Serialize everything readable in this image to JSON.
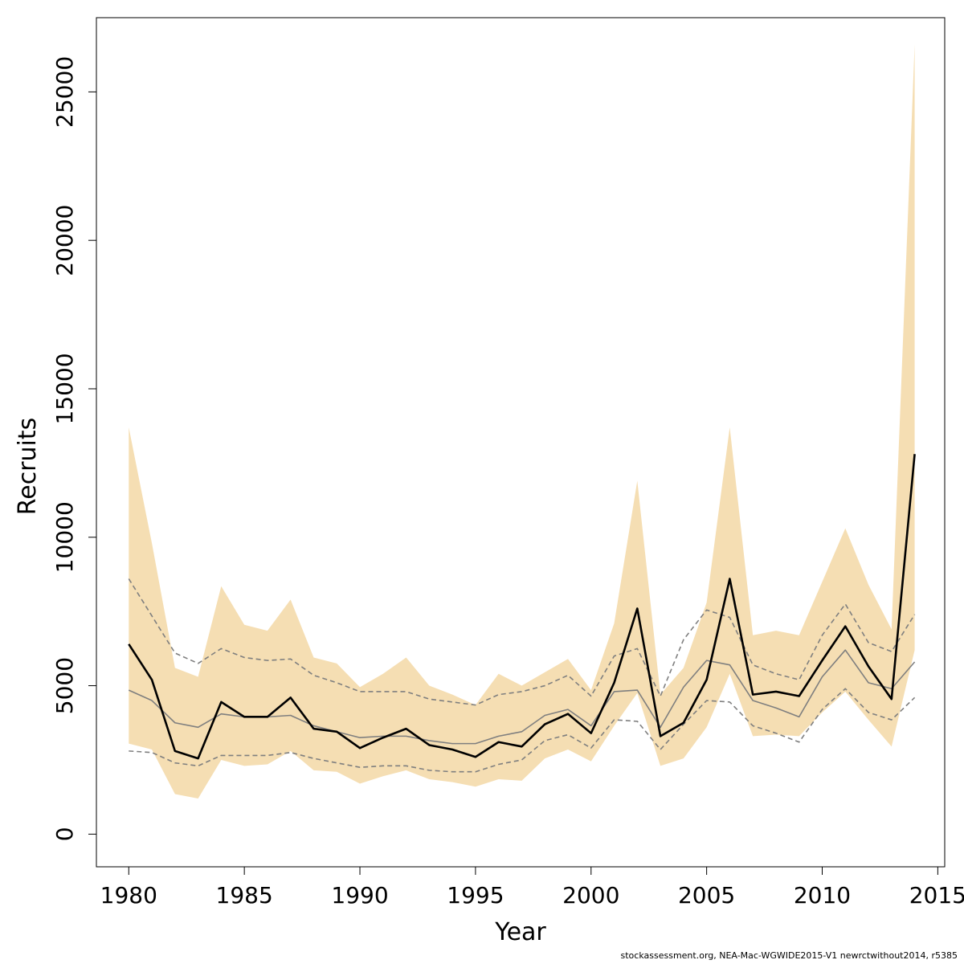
{
  "chart_data": {
    "type": "line",
    "xlabel": "Year",
    "ylabel": "Recruits",
    "xlim": [
      1978.6,
      2015.3
    ],
    "ylim": [
      -1100,
      27500
    ],
    "x_ticks": [
      1980,
      1985,
      1990,
      1995,
      2000,
      2005,
      2010,
      2015
    ],
    "y_ticks": [
      0,
      5000,
      10000,
      15000,
      20000,
      25000
    ],
    "grid": false,
    "legend": "none",
    "x": [
      1980,
      1981,
      1982,
      1983,
      1984,
      1985,
      1986,
      1987,
      1988,
      1989,
      1990,
      1991,
      1992,
      1993,
      1994,
      1995,
      1996,
      1997,
      1998,
      1999,
      2000,
      2001,
      2002,
      2003,
      2004,
      2005,
      2006,
      2007,
      2008,
      2009,
      2010,
      2011,
      2012,
      2013,
      2014
    ],
    "band": {
      "color": "#f5deb3",
      "upper": [
        13700,
        9800,
        5600,
        5300,
        8350,
        7050,
        6850,
        7900,
        5950,
        5750,
        4950,
        5400,
        5950,
        5000,
        4700,
        4350,
        5400,
        5000,
        5450,
        5900,
        4850,
        7100,
        11900,
        4700,
        5600,
        7800,
        13700,
        6700,
        6850,
        6700,
        8500,
        10300,
        8400,
        6900,
        26600
      ],
      "lower": [
        3050,
        2850,
        1350,
        1200,
        2500,
        2300,
        2350,
        2800,
        2150,
        2100,
        1700,
        1950,
        2150,
        1850,
        1750,
        1600,
        1850,
        1800,
        2550,
        2850,
        2450,
        3650,
        4750,
        2300,
        2550,
        3600,
        5400,
        3300,
        3350,
        3300,
        4100,
        4800,
        3850,
        2950,
        6200
      ]
    },
    "series": [
      {
        "color": "#000000",
        "dash": "solid",
        "width": 2.6,
        "values": [
          6400,
          5200,
          2800,
          2550,
          4450,
          3950,
          3950,
          4600,
          3550,
          3450,
          2900,
          3250,
          3550,
          3000,
          2850,
          2600,
          3100,
          2950,
          3700,
          4050,
          3400,
          5100,
          7600,
          3300,
          3750,
          5200,
          8600,
          4700,
          4800,
          4650,
          5850,
          7000,
          5650,
          4550,
          12800
        ]
      },
      {
        "color": "#7f7f7f",
        "dash": "solid",
        "width": 1.6,
        "values": [
          4850,
          4500,
          3750,
          3600,
          4050,
          3950,
          3950,
          4000,
          3650,
          3450,
          3250,
          3300,
          3300,
          3150,
          3050,
          3050,
          3300,
          3450,
          4000,
          4200,
          3650,
          4800,
          4850,
          3600,
          4950,
          5850,
          5700,
          4500,
          4250,
          3950,
          5300,
          6200,
          5100,
          4900,
          5800
        ]
      },
      {
        "color": "#7f7f7f",
        "dash": "dashed",
        "width": 1.6,
        "values": [
          8600,
          7350,
          6100,
          5750,
          6250,
          5950,
          5850,
          5900,
          5350,
          5100,
          4800,
          4800,
          4800,
          4550,
          4450,
          4350,
          4700,
          4800,
          5000,
          5350,
          4650,
          6000,
          6250,
          4650,
          6550,
          7550,
          7300,
          5700,
          5400,
          5200,
          6700,
          7750,
          6450,
          6150,
          7400
        ]
      },
      {
        "color": "#7f7f7f",
        "dash": "dashed",
        "width": 1.6,
        "values": [
          2800,
          2750,
          2400,
          2300,
          2650,
          2650,
          2650,
          2750,
          2550,
          2400,
          2250,
          2300,
          2300,
          2150,
          2100,
          2100,
          2350,
          2500,
          3150,
          3350,
          2900,
          3850,
          3800,
          2850,
          3700,
          4500,
          4450,
          3650,
          3400,
          3100,
          4200,
          4900,
          4100,
          3850,
          4600
        ]
      }
    ]
  },
  "footer_text": "stockassessment.org, NEA-Mac-WGWIDE2015-V1  newrctwithout2014, r5385"
}
